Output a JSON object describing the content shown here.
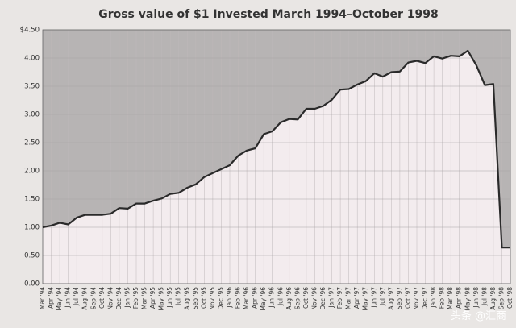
{
  "chart_data": {
    "type": "line",
    "title": "Gross value of $1 Invested March 1994–October 1998",
    "categories": [
      "Mar '94",
      "Apr '94",
      "May '94",
      "Jun '94",
      "Jul '94",
      "Aug '94",
      "Sep '94",
      "Oct '94",
      "Nov '94",
      "Dec '94",
      "Jan '95",
      "Feb '95",
      "Mar '95",
      "Apr '95",
      "May '95",
      "Jun '95",
      "Jul '95",
      "Aug '95",
      "Sep '95",
      "Oct '95",
      "Nov '95",
      "Dec '95",
      "Jan '96",
      "Feb '96",
      "Mar '96",
      "Apr '96",
      "May '96",
      "Jun '96",
      "Jul '96",
      "Aug '96",
      "Sep '96",
      "Oct '96",
      "Nov '96",
      "Dec '96",
      "Jan '97",
      "Feb '97",
      "Mar '97",
      "Apr '97",
      "May '97",
      "Jun '97",
      "Jul '97",
      "Aug '97",
      "Sep '97",
      "Oct '97",
      "Nov '97",
      "Dec '97",
      "Jan '98",
      "Feb '98",
      "Mar '98",
      "Apr '98",
      "May '98",
      "Jun '98",
      "Jul '98",
      "Aug '98",
      "Sep '98",
      "Oct '98"
    ],
    "values": [
      1.0,
      1.03,
      1.08,
      1.05,
      1.17,
      1.22,
      1.22,
      1.22,
      1.24,
      1.34,
      1.33,
      1.42,
      1.42,
      1.47,
      1.51,
      1.59,
      1.61,
      1.7,
      1.76,
      1.89,
      1.96,
      2.03,
      2.1,
      2.27,
      2.36,
      2.4,
      2.65,
      2.7,
      2.86,
      2.92,
      2.91,
      3.1,
      3.1,
      3.15,
      3.26,
      3.44,
      3.45,
      3.53,
      3.59,
      3.73,
      3.67,
      3.75,
      3.76,
      3.92,
      3.95,
      3.91,
      4.03,
      3.99,
      4.04,
      4.03,
      4.13,
      3.87,
      3.52,
      3.54,
      0.64,
      0.64
    ],
    "color": "#2a2a2a",
    "ylim": [
      0,
      4.5
    ],
    "yticks": [
      {
        "value": 0,
        "label": "0.00"
      },
      {
        "value": 0.5,
        "label": "0.50"
      },
      {
        "value": 1,
        "label": "1.00"
      },
      {
        "value": 1.5,
        "label": "1.50"
      },
      {
        "value": 2,
        "label": "2.00"
      },
      {
        "value": 2.5,
        "label": "2.50"
      },
      {
        "value": 3,
        "label": "3.00"
      },
      {
        "value": 3.5,
        "label": "3.50"
      },
      {
        "value": 4,
        "label": "4.00"
      },
      {
        "value": 4.5,
        "label": "$4.50"
      }
    ],
    "grid": true
  },
  "watermark": "头条 @汇商"
}
